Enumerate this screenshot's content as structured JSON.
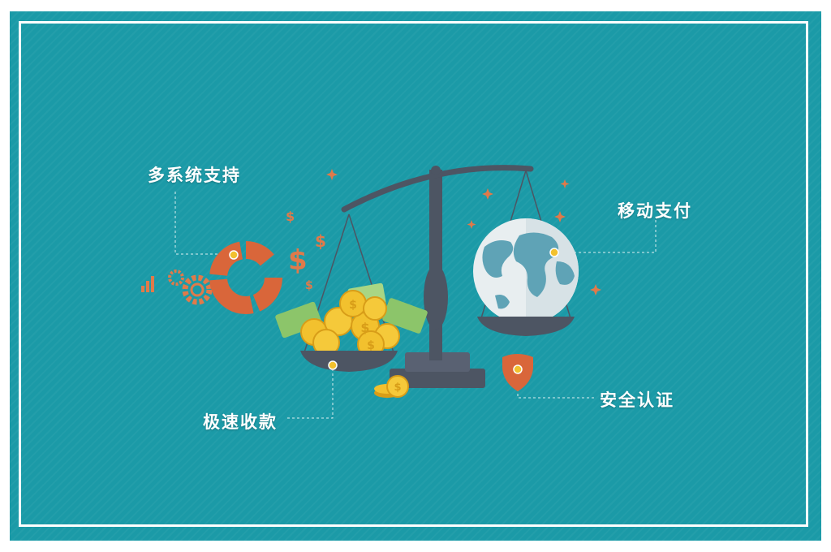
{
  "labels": {
    "multi_system": "多系统支持",
    "mobile_pay": "移动支付",
    "fast_collect": "极速收款",
    "security": "安全认证"
  },
  "icons": [
    "bar-chart-icon",
    "gear-icon",
    "donut-chart-icon",
    "dollar-sign-icon",
    "scale-icon",
    "coin-stack-icon",
    "banknote-icon",
    "globe-icon",
    "shield-icon",
    "sparkle-icon"
  ],
  "colors": {
    "background": "#1b9aa7",
    "frame": "#ffffff",
    "accent_orange": "#d9663a",
    "scale_gray": "#4d5563",
    "coin_gold": "#f2c12e",
    "bill_green": "#8cc56a",
    "globe_blue": "#5fa3b6"
  }
}
